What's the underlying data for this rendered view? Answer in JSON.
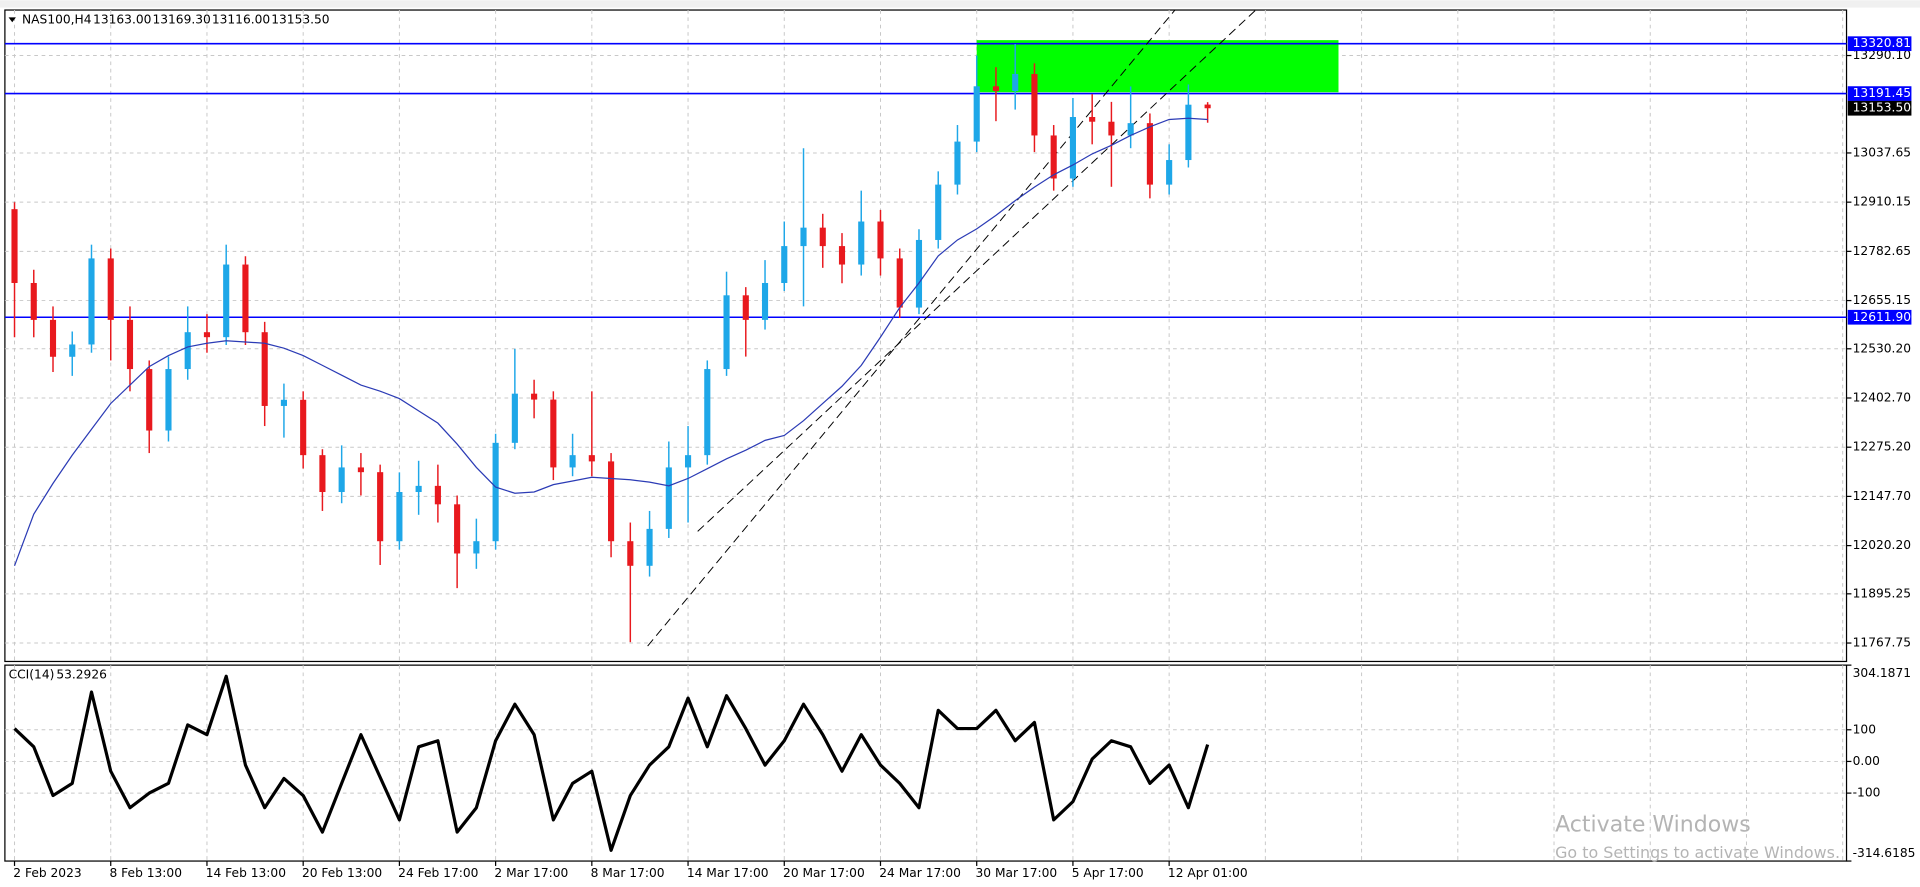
{
  "chart_data": [
    {
      "type": "candlestick",
      "title": "NAS100,H4",
      "title_values": [
        "13163.00",
        "13169.30",
        "13116.00",
        "13153.50"
      ],
      "categories": [
        "2 Feb 2023",
        null,
        null,
        null,
        null,
        "8 Feb 13:00",
        null,
        null,
        null,
        null,
        "14 Feb 13:00",
        null,
        null,
        null,
        null,
        "20 Feb 13:00",
        null,
        null,
        null,
        null,
        "24 Feb 17:00",
        null,
        null,
        null,
        null,
        "2 Mar 17:00",
        null,
        null,
        null,
        null,
        "8 Mar 17:00",
        null,
        null,
        null,
        null,
        "14 Mar 17:00",
        null,
        null,
        null,
        null,
        "20 Mar 17:00",
        null,
        null,
        null,
        null,
        "24 Mar 17:00",
        null,
        null,
        null,
        null,
        "30 Mar 17:00",
        null,
        null,
        null,
        null,
        "5 Apr 17:00",
        null,
        null,
        null,
        null,
        "12 Apr 01:00",
        null,
        null
      ],
      "open": [
        12892.0,
        12700.7,
        12605.1,
        12509.5,
        12541.4,
        12764.4,
        12605.1,
        12477.7,
        12318.4,
        12477.7,
        12573.2,
        12560.3,
        12748.5,
        12573.2,
        12382.1,
        12398.0,
        12254.6,
        12159.1,
        12222.8,
        12210.5,
        12031.6,
        12159.1,
        12175.0,
        12127.2,
        11999.8,
        12031.6,
        12286.5,
        12413.9,
        12398.6,
        12222.8,
        12254.6,
        12238.4,
        12031.6,
        11967.9,
        12063.5,
        12222.8,
        12254.6,
        12477.7,
        12668.8,
        12605.1,
        12700.7,
        12796.3,
        12844.1,
        12796.3,
        12748.5,
        12860.0,
        12764.4,
        12637.0,
        12812.2,
        12955.6,
        13067.1,
        13210.4,
        13198.2,
        13242.3,
        13083.0,
        12971.5,
        13130.8,
        13118.6,
        13083.0,
        13114.9,
        12955.6,
        13019.3,
        13163.0
      ],
      "high": [
        12910.0,
        12735.0,
        12640.0,
        12575.0,
        12800.0,
        12790.0,
        12640.0,
        12500.0,
        12510.0,
        12640.0,
        12620.0,
        12800.0,
        12770.0,
        12600.0,
        12440.0,
        12420.0,
        12270.0,
        12280.0,
        12260.0,
        12230.0,
        12210.0,
        12240.0,
        12230.0,
        12150.0,
        12090.0,
        12310.0,
        12530.0,
        12450.0,
        12420.0,
        12310.0,
        12420.0,
        12260.0,
        12080.0,
        12110.0,
        12290.0,
        12330.0,
        12500.0,
        12730.0,
        12690.0,
        12760.0,
        12860.0,
        13050.0,
        12880.0,
        12830.0,
        12940.0,
        12890.0,
        12790.0,
        12840.0,
        12990.0,
        13110.0,
        13290.0,
        13260.0,
        13320.0,
        13270.0,
        13110.0,
        13180.0,
        13190.0,
        13170.0,
        13210.0,
        13140.0,
        13060.0,
        13215.0,
        13169.3
      ],
      "low": [
        12560.0,
        12560.0,
        12470.0,
        12460.0,
        12520.0,
        12500.0,
        12420.0,
        12260.0,
        12290.0,
        12450.0,
        12520.0,
        12540.0,
        12540.0,
        12330.0,
        12300.0,
        12220.0,
        12110.0,
        12130.0,
        12150.0,
        11970.0,
        12010.0,
        12100.0,
        12080.0,
        11910.0,
        11960.0,
        12010.0,
        12270.0,
        12350.0,
        12190.0,
        12200.0,
        12200.0,
        11990.0,
        11770.0,
        11940.0,
        12040.0,
        12080.0,
        12230.0,
        12460.0,
        12510.0,
        12580.0,
        12680.0,
        12640.0,
        12740.0,
        12700.0,
        12720.0,
        12720.0,
        12610.0,
        12620.0,
        12790.0,
        12930.0,
        13040.0,
        13120.0,
        13150.0,
        13040.0,
        12940.0,
        12950.0,
        13060.0,
        12950.0,
        13050.0,
        12920.0,
        12930.0,
        13000.0,
        13116.0
      ],
      "close": [
        12700.7,
        12605.1,
        12509.5,
        12541.4,
        12764.4,
        12605.1,
        12477.7,
        12318.4,
        12477.7,
        12573.2,
        12560.3,
        12748.5,
        12573.2,
        12382.1,
        12398.0,
        12254.6,
        12159.1,
        12222.8,
        12210.5,
        12031.6,
        12159.1,
        12175.0,
        12127.2,
        11999.8,
        12031.6,
        12286.5,
        12413.9,
        12398.6,
        12222.8,
        12254.6,
        12238.4,
        12031.6,
        11967.9,
        12063.5,
        12222.8,
        12254.6,
        12477.7,
        12668.8,
        12605.1,
        12700.7,
        12796.3,
        12844.1,
        12796.3,
        12748.5,
        12860.0,
        12764.4,
        12637.0,
        12812.2,
        12955.6,
        13067.1,
        13210.4,
        13198.2,
        13242.3,
        13083.0,
        12971.5,
        13130.8,
        13118.6,
        13083.0,
        13114.9,
        12955.6,
        13019.3,
        13162.7,
        13153.5
      ],
      "up_color": "#1ea7e8",
      "down_color": "#e8191e",
      "moving_average": {
        "color": "#2b3bb5",
        "values": [
          11967.9,
          12101.7,
          12181.4,
          12254.6,
          12321.6,
          12388.5,
          12436.3,
          12484.0,
          12512.7,
          12535.0,
          12544.6,
          12550.9,
          12547.8,
          12544.6,
          12531.8,
          12512.7,
          12487.2,
          12461.7,
          12436.3,
          12420.3,
          12401.2,
          12369.3,
          12337.5,
          12283.3,
          12222.8,
          12171.8,
          12155.9,
          12159.1,
          12178.2,
          12187.7,
          12197.3,
          12194.1,
          12190.9,
          12184.6,
          12175.0,
          12194.1,
          12219.6,
          12245.1,
          12267.4,
          12292.9,
          12305.6,
          12343.9,
          12388.5,
          12433.1,
          12487.2,
          12560.5,
          12637.0,
          12700.7,
          12770.8,
          12812.2,
          12840.9,
          12875.9,
          12914.2,
          12949.2,
          12981.1,
          13006.5,
          13035.2,
          13057.5,
          13083.0,
          13105.3,
          13124.4,
          13127.6,
          13124.4
        ]
      },
      "levels": [
        {
          "value": 13320.81,
          "label": "13320.81"
        },
        {
          "value": 13191.45,
          "label": "13191.45"
        },
        {
          "value": 12611.9,
          "label": "12611.90"
        }
      ],
      "level_color": "#0000ff",
      "price_label": {
        "value": 13153.5,
        "label": "13153.50"
      },
      "zone": {
        "start": 50,
        "end": 68.8,
        "low": 13195.0,
        "high": 13330.0,
        "color": "#00ff00"
      },
      "trendlines": [
        {
          "x": [
            32.9,
            60.3
          ],
          "y": [
            11760.0,
            13408.0
          ]
        },
        {
          "x": [
            35.5,
            64.5
          ],
          "y": [
            12057.0,
            13408.0
          ]
        }
      ],
      "xlim": [
        -0.5,
        95.2
      ],
      "ylim": [
        11720.0,
        13408.0
      ],
      "yticks": [
        {
          "value": 13290.1,
          "label": "13290.10"
        },
        13037.65,
        12910.15,
        12782.65,
        12655.15,
        {
          "value": 12530.2,
          "label": "12530.20"
        },
        {
          "value": 12402.7,
          "label": "12402.70"
        },
        {
          "value": 12275.2,
          "label": "12275.20"
        },
        {
          "value": 12147.7,
          "label": "12147.70"
        },
        {
          "value": 12020.2,
          "label": "12020.20"
        },
        11895.25,
        11767.75
      ],
      "grid": true
    },
    {
      "type": "line",
      "title": "CCI(14)",
      "color": "#000000",
      "values": [
        103.8,
        46.2,
        -107.7,
        -69.2,
        219.2,
        -30.8,
        -146.2,
        -100.0,
        -69.2,
        115.4,
        84.6,
        269.2,
        -11.5,
        -146.2,
        -53.8,
        -107.7,
        -223.1,
        -69.2,
        84.6,
        -50.0,
        -184.6,
        46.2,
        65.4,
        -223.1,
        -146.2,
        65.4,
        180.8,
        84.6,
        -184.6,
        -69.2,
        -30.8,
        -280.8,
        -107.7,
        -11.5,
        46.2,
        200.0,
        46.2,
        207.7,
        103.8,
        -11.5,
        65.4,
        180.8,
        84.6,
        -30.8,
        84.6,
        -11.5,
        -69.2,
        -146.2,
        161.5,
        103.8,
        103.8,
        161.5,
        65.4,
        123.1,
        -184.6,
        -126.9,
        7.7,
        65.4,
        46.2,
        -69.2,
        -11.5,
        -146.2,
        53.2926
      ],
      "xlim": [
        -0.5,
        95.2
      ],
      "ylim": [
        -314.6185,
        304.1871
      ],
      "yticks": [
        304.1871,
        100,
        {
          "value": 0,
          "label": "0.00"
        },
        -100,
        -314.6185
      ],
      "grid": true
    }
  ],
  "watermark": {
    "title": "Activate Windows",
    "subtitle": "Go to Settings to activate Windows."
  }
}
